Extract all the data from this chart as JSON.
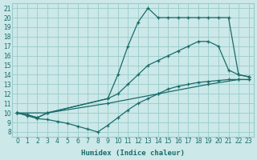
{
  "xlabel": "Humidex (Indice chaleur)",
  "background_color": "#cce8e8",
  "grid_color": "#99cccc",
  "line_color": "#1a6b6b",
  "xlim": [
    -0.5,
    23.5
  ],
  "ylim": [
    7.5,
    21.5
  ],
  "xticks": [
    0,
    1,
    2,
    3,
    4,
    5,
    6,
    7,
    8,
    9,
    10,
    11,
    12,
    13,
    14,
    15,
    16,
    17,
    18,
    19,
    20,
    21,
    22,
    23
  ],
  "yticks": [
    8,
    9,
    10,
    11,
    12,
    13,
    14,
    15,
    16,
    17,
    18,
    19,
    20,
    21
  ],
  "lines": [
    {
      "x": [
        0,
        1,
        2,
        3,
        9,
        10,
        11,
        12,
        13,
        14,
        15,
        16,
        17,
        18,
        19,
        20,
        21,
        22,
        23
      ],
      "y": [
        10,
        9.8,
        9.5,
        10.0,
        11.5,
        14.0,
        17.0,
        19.5,
        21.0,
        20.0,
        20.0,
        20.0,
        20.0,
        20.0,
        20.0,
        20.0,
        20.0,
        14.0,
        13.8
      ]
    },
    {
      "x": [
        0,
        1,
        2,
        3,
        9,
        10,
        11,
        12,
        13,
        14,
        15,
        16,
        17,
        18,
        19,
        20,
        21,
        22,
        23
      ],
      "y": [
        10,
        9.8,
        9.5,
        10.0,
        11.5,
        12.0,
        13.0,
        14.0,
        15.0,
        15.5,
        16.0,
        16.5,
        17.0,
        17.5,
        17.5,
        17.0,
        14.5,
        14.0,
        13.8
      ]
    },
    {
      "x": [
        0,
        3,
        9,
        14,
        19,
        22,
        23
      ],
      "y": [
        10,
        10.0,
        11.0,
        12.0,
        13.0,
        13.5,
        13.5
      ]
    },
    {
      "x": [
        0,
        1,
        2,
        3,
        4,
        5,
        6,
        7,
        8,
        9,
        10,
        11,
        12,
        13,
        14,
        15,
        16,
        17,
        18,
        19,
        20,
        21,
        22,
        23
      ],
      "y": [
        10,
        9.7,
        9.4,
        9.3,
        9.1,
        8.9,
        8.6,
        8.3,
        8.0,
        8.7,
        9.5,
        10.3,
        11.0,
        11.5,
        12.0,
        12.5,
        12.8,
        13.0,
        13.2,
        13.3,
        13.4,
        13.5,
        13.5,
        13.5
      ]
    }
  ]
}
